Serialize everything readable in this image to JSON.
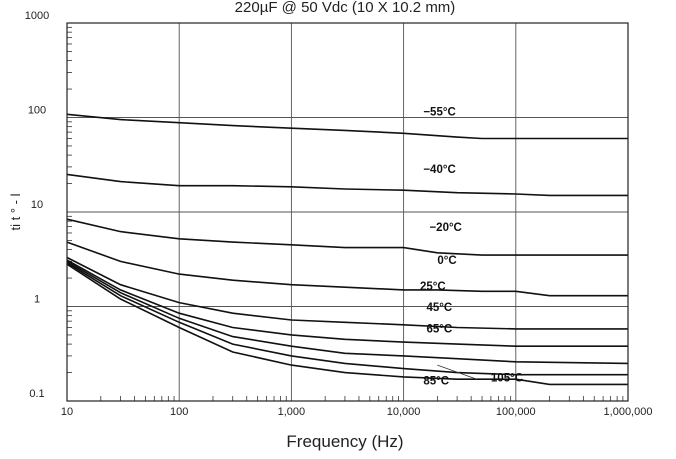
{
  "chart_data": {
    "type": "line",
    "title": "220µF @ 50 Vdc (10 X 10.2 mm)",
    "xlabel": "Frequency (Hz)",
    "ylabel": "ti t ° - l",
    "x_scale": "log",
    "y_scale": "log",
    "xlim": [
      10,
      1000000
    ],
    "ylim": [
      0.1,
      1000
    ],
    "grid": true,
    "x_ticks": [
      {
        "value": 10,
        "label": "10"
      },
      {
        "value": 100,
        "label": "100"
      },
      {
        "value": 1000,
        "label": "1,000"
      },
      {
        "value": 10000,
        "label": "10,000"
      },
      {
        "value": 100000,
        "label": "100,000"
      },
      {
        "value": 1000000,
        "label": "1,000,000"
      }
    ],
    "y_ticks": [
      {
        "value": 0.1,
        "label": "0.1"
      },
      {
        "value": 1,
        "label": "1"
      },
      {
        "value": 10,
        "label": "10"
      },
      {
        "value": 100,
        "label": "100"
      },
      {
        "value": 1000,
        "label": "1000"
      }
    ],
    "series": [
      {
        "name": "−55°C",
        "label_at": [
          15000,
          105
        ],
        "x": [
          10,
          30,
          100,
          300,
          1000,
          3000,
          10000,
          30000,
          50000,
          100000,
          1000000
        ],
        "y": [
          108,
          95,
          88,
          82,
          77,
          73,
          68,
          62,
          60,
          60,
          60
        ]
      },
      {
        "name": "−40°C",
        "label_at": [
          15000,
          26
        ],
        "x": [
          10,
          30,
          100,
          300,
          1000,
          3000,
          10000,
          30000,
          100000,
          200000,
          1000000
        ],
        "y": [
          25,
          21,
          19,
          19,
          18.5,
          17.5,
          17,
          16,
          15.5,
          15,
          15
        ]
      },
      {
        "name": "−20°C",
        "label_at": [
          17000,
          6.3
        ],
        "x": [
          10,
          30,
          100,
          300,
          1000,
          3000,
          10000,
          20000,
          50000,
          100000,
          1000000
        ],
        "y": [
          8.4,
          6.2,
          5.2,
          4.8,
          4.5,
          4.2,
          4.2,
          3.7,
          3.5,
          3.5,
          3.5
        ]
      },
      {
        "name": "0°C",
        "label_at": [
          20000,
          2.8
        ],
        "x": [
          10,
          30,
          100,
          300,
          1000,
          3000,
          10000,
          20000,
          50000,
          100000,
          200000,
          1000000
        ],
        "y": [
          4.8,
          3.0,
          2.2,
          1.9,
          1.7,
          1.6,
          1.5,
          1.5,
          1.45,
          1.45,
          1.3,
          1.3
        ]
      },
      {
        "name": "25°C",
        "label_at": [
          14000,
          1.5
        ],
        "x": [
          10,
          30,
          100,
          300,
          1000,
          3000,
          10000,
          30000,
          100000,
          1000000
        ],
        "y": [
          3.3,
          1.7,
          1.1,
          0.85,
          0.72,
          0.68,
          0.64,
          0.6,
          0.58,
          0.58
        ]
      },
      {
        "name": "45°C",
        "label_at": [
          16000,
          0.9
        ],
        "x": [
          10,
          30,
          100,
          300,
          1000,
          3000,
          10000,
          30000,
          100000,
          1000000
        ],
        "y": [
          3.1,
          1.5,
          0.85,
          0.6,
          0.5,
          0.45,
          0.42,
          0.4,
          0.38,
          0.38
        ]
      },
      {
        "name": "65°C",
        "label_at": [
          16000,
          0.53
        ],
        "x": [
          10,
          30,
          100,
          300,
          1000,
          3000,
          10000,
          30000,
          100000,
          1000000
        ],
        "y": [
          3.0,
          1.4,
          0.75,
          0.48,
          0.38,
          0.32,
          0.3,
          0.28,
          0.26,
          0.25
        ]
      },
      {
        "name": "85°C",
        "label_at": [
          15000,
          0.15
        ],
        "x": [
          10,
          30,
          100,
          300,
          1000,
          3000,
          10000,
          30000,
          100000,
          1000000
        ],
        "y": [
          2.9,
          1.3,
          0.68,
          0.4,
          0.3,
          0.25,
          0.22,
          0.2,
          0.19,
          0.19
        ]
      },
      {
        "name": "105°C",
        "label_at": [
          60000,
          0.16
        ],
        "x": [
          10,
          30,
          100,
          300,
          1000,
          3000,
          10000,
          30000,
          100000,
          200000,
          1000000
        ],
        "y": [
          2.8,
          1.2,
          0.6,
          0.33,
          0.24,
          0.2,
          0.18,
          0.17,
          0.17,
          0.15,
          0.15
        ]
      }
    ]
  }
}
